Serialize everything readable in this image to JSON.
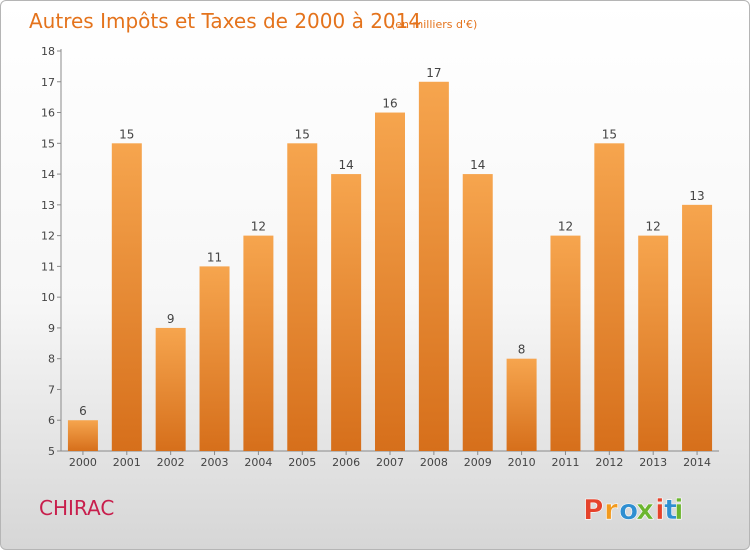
{
  "chart_data": {
    "type": "bar",
    "title": "Autres Impôts et Taxes de 2000 à 2014",
    "unit": "(en milliers d'€)",
    "categories": [
      "2000",
      "2001",
      "2002",
      "2003",
      "2004",
      "2005",
      "2006",
      "2007",
      "2008",
      "2009",
      "2010",
      "2011",
      "2012",
      "2013",
      "2014"
    ],
    "values": [
      6,
      15,
      9,
      11,
      12,
      15,
      14,
      16,
      17,
      14,
      8,
      12,
      15,
      12,
      13
    ],
    "ylim": [
      5,
      18
    ],
    "yticks": [
      5,
      6,
      7,
      8,
      9,
      10,
      11,
      12,
      13,
      14,
      15,
      16,
      17,
      18
    ],
    "grid": false,
    "colors": {
      "bar_light": "#f6a54e",
      "bar_dark": "#d66f1b",
      "title": "#e4731c",
      "place": "#c81e4c"
    }
  },
  "place": "CHIRAC",
  "brand": {
    "name": "Proxiti",
    "colors": [
      "#e5422b",
      "#f29a1e",
      "#2f8fd1",
      "#6bb52e",
      "#e5422b",
      "#2f8fd1",
      "#6bb52e"
    ]
  }
}
